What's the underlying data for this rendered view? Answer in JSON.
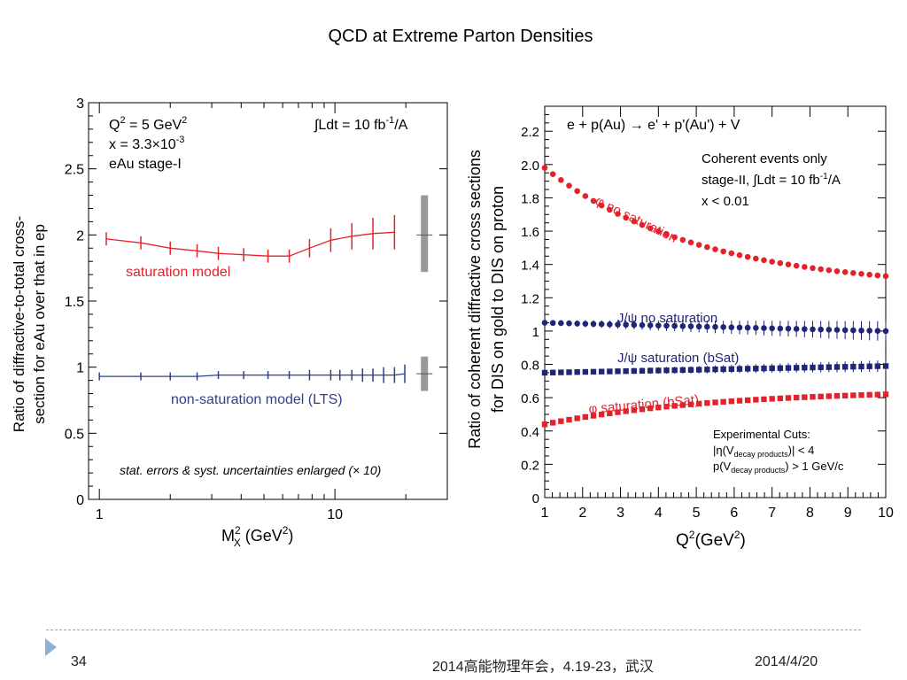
{
  "slide": {
    "title": "QCD at Extreme Parton Densities",
    "number": "34",
    "conference": "2014高能物理年会，4.19-23，武汉",
    "date": "2014/4/20"
  },
  "colors": {
    "red": "#e3232c",
    "blue": "#2e3f8f",
    "dark_blue": "#1f2675",
    "gray": "#999999"
  },
  "chart_data": [
    {
      "type": "line",
      "xscale": "log",
      "xlim": [
        0.9,
        30
      ],
      "ylim": [
        0,
        3
      ],
      "xticks": [
        1,
        10
      ],
      "xtick_labels": [
        "1",
        "10"
      ],
      "yticks": [
        0,
        0.5,
        1,
        1.5,
        2,
        2.5,
        3
      ],
      "ytick_labels": [
        "0",
        "0.5",
        "1",
        "1.5",
        "2",
        "2.5",
        "3"
      ],
      "xlabel_main": "M",
      "xlabel_sup": "2",
      "xlabel_sub": "X",
      "xlabel_rest": " (GeV",
      "xlabel_sup2": "2",
      "xlabel_end": ")",
      "ylabel_line1": "Ratio of diffractive-to-total cross-",
      "ylabel_line2": "section for eAu over that in ep",
      "info_q2": "Q",
      "info_q2_sup": "2",
      "info_q2_rest": " = 5 GeV",
      "info_q2_sup2": "2",
      "info_x": "x = 3.3×10",
      "info_x_sup": "-3",
      "info_stage": "eAu stage-I",
      "info_lumi": "∫Ldt = 10 fb",
      "info_lumi_sup": "-1",
      "info_lumi_end": "/A",
      "footnote": "stat. errors & syst. uncertainties enlarged (× 10)",
      "series": [
        {
          "name": "saturation model",
          "color": "#e3232c",
          "x": [
            1.07,
            1.5,
            2.0,
            2.6,
            3.2,
            4.1,
            5.2,
            6.4,
            7.8,
            9.6,
            11.8,
            14.5,
            17.9
          ],
          "y": [
            1.97,
            1.94,
            1.9,
            1.88,
            1.86,
            1.85,
            1.84,
            1.84,
            1.9,
            1.96,
            1.99,
            2.01,
            2.02
          ],
          "err": [
            0.05,
            0.05,
            0.05,
            0.05,
            0.05,
            0.05,
            0.05,
            0.05,
            0.07,
            0.09,
            0.1,
            0.12,
            0.13
          ]
        },
        {
          "name": "non-saturation model (LTS)",
          "color": "#2e3f8f",
          "x": [
            1.0,
            1.5,
            2.0,
            2.6,
            3.2,
            4.1,
            5.2,
            6.4,
            7.8,
            9.6,
            10.5,
            11.8,
            13.1,
            14.5,
            16.1,
            17.9,
            19.8
          ],
          "y": [
            0.93,
            0.93,
            0.93,
            0.93,
            0.94,
            0.94,
            0.94,
            0.94,
            0.94,
            0.94,
            0.94,
            0.94,
            0.94,
            0.94,
            0.94,
            0.94,
            0.95
          ],
          "err": [
            0.03,
            0.03,
            0.03,
            0.03,
            0.03,
            0.03,
            0.03,
            0.03,
            0.04,
            0.04,
            0.04,
            0.04,
            0.05,
            0.05,
            0.06,
            0.06,
            0.07
          ]
        }
      ],
      "syst_bands": [
        {
          "center": 2.0,
          "low": 1.72,
          "high": 2.3
        },
        {
          "center": 0.95,
          "low": 0.82,
          "high": 1.08
        }
      ]
    },
    {
      "type": "scatter",
      "xlim": [
        1,
        10
      ],
      "ylim": [
        0,
        2.35
      ],
      "xticks": [
        1,
        2,
        3,
        4,
        5,
        6,
        7,
        8,
        9,
        10
      ],
      "xtick_labels": [
        "1",
        "2",
        "3",
        "4",
        "5",
        "6",
        "7",
        "8",
        "9",
        "10"
      ],
      "yticks": [
        0,
        0.2,
        0.4,
        0.6,
        0.8,
        1,
        1.2,
        1.4,
        1.6,
        1.8,
        2.0,
        2.2
      ],
      "ytick_labels": [
        "0",
        "0.2",
        "0.4",
        "0.6",
        "0.8",
        "1",
        "1.2",
        "1.4",
        "1.6",
        "1.8",
        "2.0",
        "2.2"
      ],
      "xlabel_main": "Q",
      "xlabel_sup": "2",
      "xlabel_rest": "(GeV",
      "xlabel_sup2": "2",
      "xlabel_end": ")",
      "ylabel_line1": "Ratio of coherent diffractive cross sections",
      "ylabel_line2": "for DIS on gold to DIS on proton",
      "process": "e  + p(Au) → e' + p'(Au') + V",
      "info_line1": "Coherent events only",
      "info_line2": "stage-II, ∫Ldt = 10 fb",
      "info_line2_sup": "-1",
      "info_line2_end": "/A",
      "info_line3": "x < 0.01",
      "cuts_title": "Experimental Cuts:",
      "cut1_pre": "|η(V",
      "cut1_sub": "decay products",
      "cut1_post": ")| < 4",
      "cut2_pre": "p(V",
      "cut2_sub": "decay products",
      "cut2_post": ") > 1 GeV/c",
      "series": [
        {
          "name": "φ no saturation",
          "color": "#e3232c",
          "marker": "circle",
          "y_start": 1.98,
          "y_end": 1.33,
          "decay": 0.45,
          "err": 0.012
        },
        {
          "name": "J/ψ no saturation",
          "color": "#1f2675",
          "marker": "circle",
          "y_start": 1.05,
          "y_end": 1.0,
          "decay": 0.0,
          "err_start": 0.015,
          "err_end": 0.06
        },
        {
          "name": "J/ψ saturation (bSat)",
          "color": "#1f2675",
          "marker": "square",
          "y_start": 0.75,
          "y_end": 0.79,
          "decay": 0.0,
          "err_start": 0.012,
          "err_end": 0.035
        },
        {
          "name": "φ saturation (bSat)",
          "color": "#e3232c",
          "marker": "square",
          "y_start": 0.44,
          "y_end": 0.62,
          "decay": 0.5,
          "err": 0.008
        }
      ],
      "series_labels": {
        "phi_nosat": "φ no saturation",
        "jpsi_nosat": "J/ψ no saturation",
        "jpsi_sat": "J/ψ saturation (bSat)",
        "phi_sat": "φ saturation (bSat)"
      }
    }
  ]
}
